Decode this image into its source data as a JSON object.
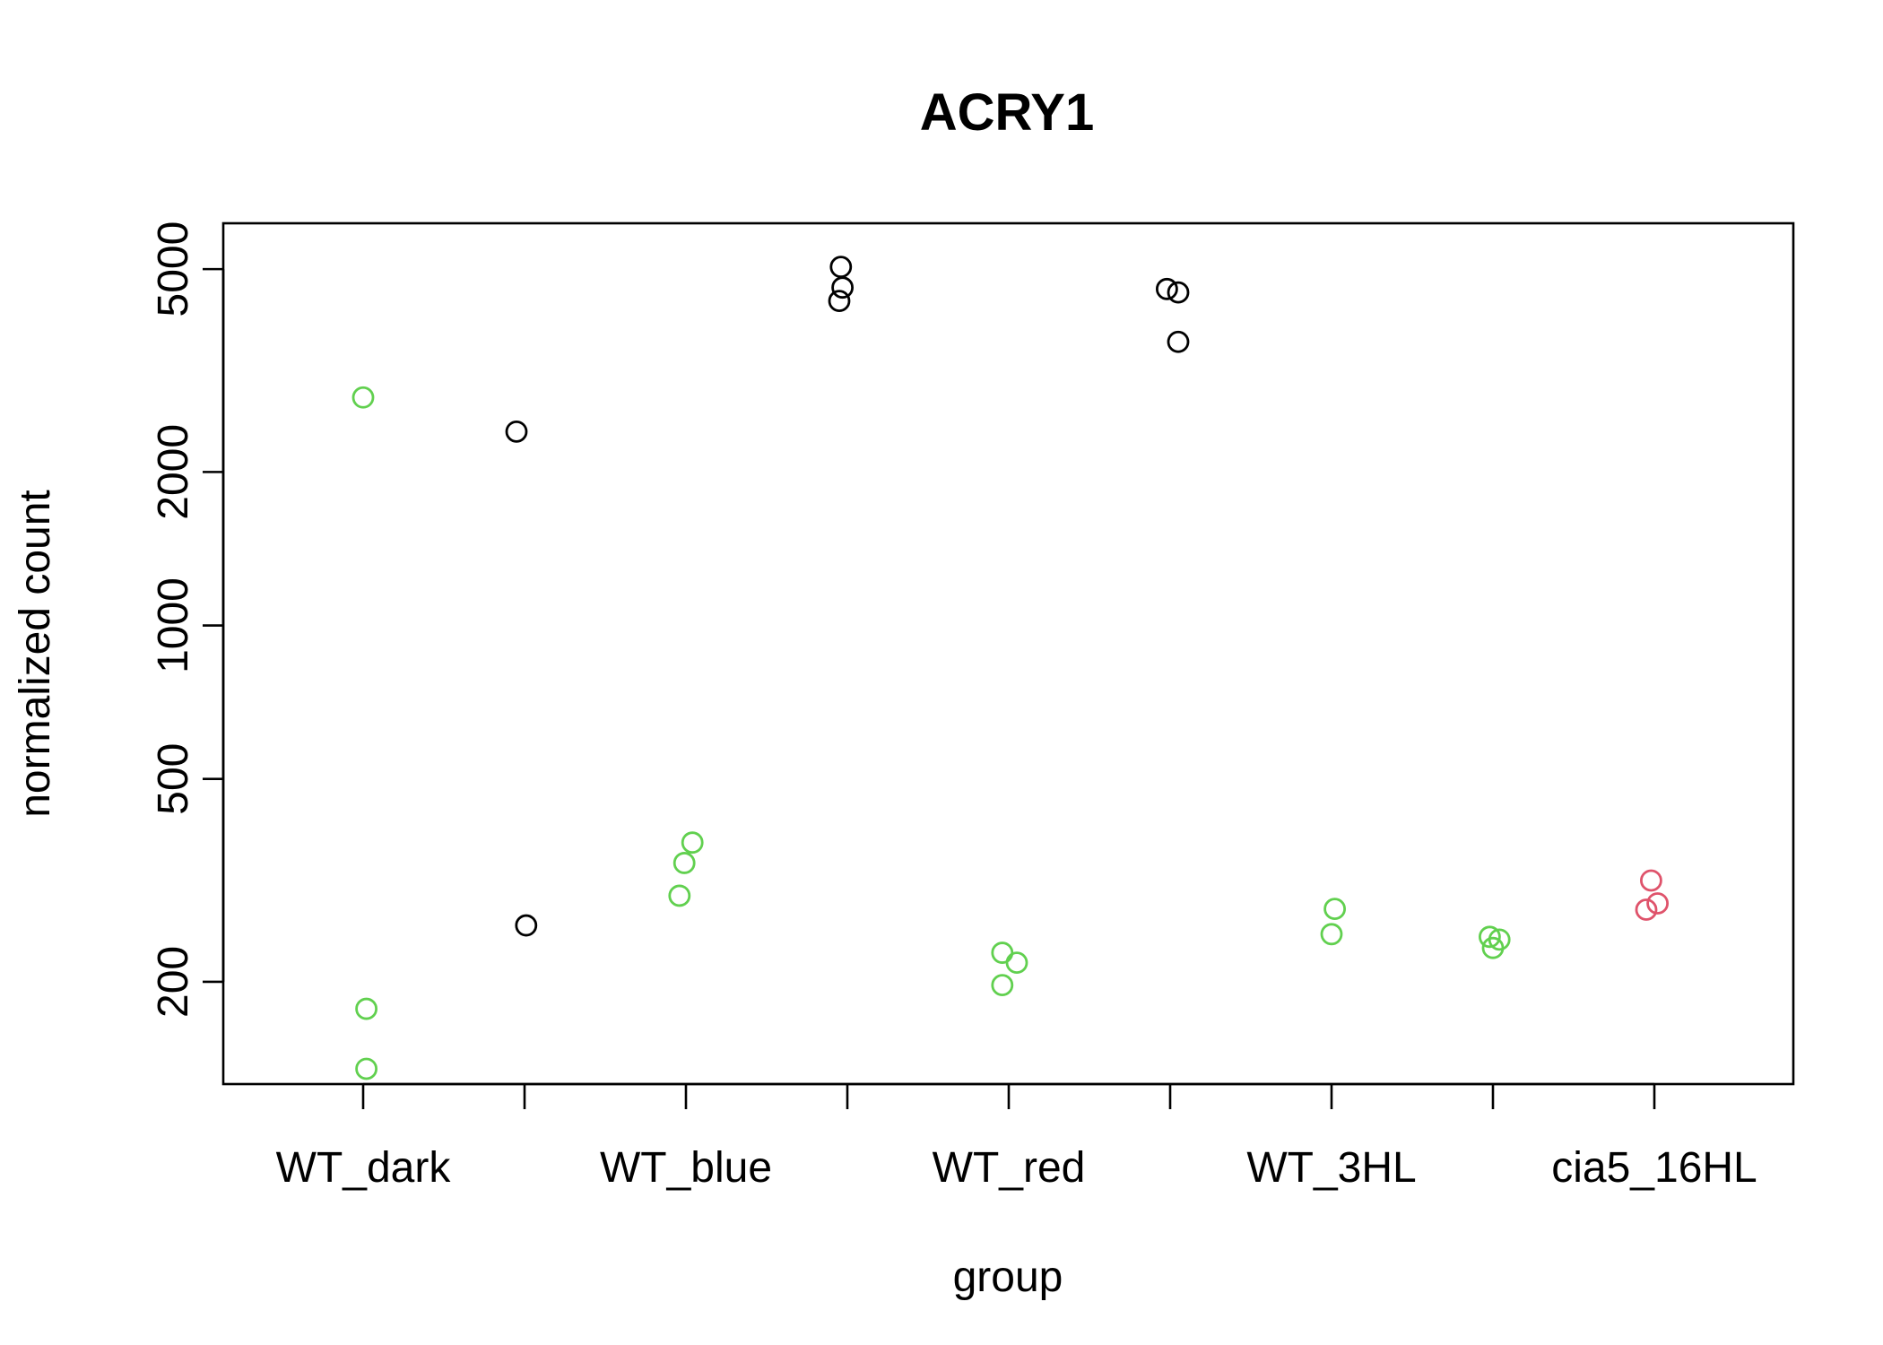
{
  "chart_data": {
    "type": "scatter",
    "title": "ACRY1",
    "xlabel": "group",
    "ylabel": "normalized count",
    "y_scale": "log",
    "ylim": [
      126,
      6150
    ],
    "y_ticks": [
      200,
      500,
      1000,
      2000,
      5000
    ],
    "categories": [
      "WT_dark",
      "",
      "WT_blue",
      "",
      "WT_red",
      "",
      "WT_3HL",
      "",
      "cia5_16HL"
    ],
    "x_tick_labels": [
      "WT_dark",
      "WT_blue",
      "WT_red",
      "WT_3HL",
      "cia5_16HL"
    ],
    "x_tick_count": 9,
    "grid": false,
    "legend": "none",
    "colors": {
      "green": "#61D04F",
      "black": "#000000",
      "red": "#DF536B"
    },
    "points": [
      {
        "x": 1.0,
        "y": 2800,
        "color": "green"
      },
      {
        "x": 1.02,
        "y": 177,
        "color": "green"
      },
      {
        "x": 1.02,
        "y": 135,
        "color": "green"
      },
      {
        "x": 1.95,
        "y": 2400,
        "color": "black"
      },
      {
        "x": 2.01,
        "y": 258,
        "color": "black"
      },
      {
        "x": 2.96,
        "y": 295,
        "color": "green"
      },
      {
        "x": 2.99,
        "y": 342,
        "color": "green"
      },
      {
        "x": 3.04,
        "y": 375,
        "color": "green"
      },
      {
        "x": 3.96,
        "y": 5050,
        "color": "black"
      },
      {
        "x": 3.97,
        "y": 4600,
        "color": "black"
      },
      {
        "x": 3.95,
        "y": 4330,
        "color": "black"
      },
      {
        "x": 4.96,
        "y": 228,
        "color": "green"
      },
      {
        "x": 5.05,
        "y": 218,
        "color": "green"
      },
      {
        "x": 4.96,
        "y": 197,
        "color": "green"
      },
      {
        "x": 5.98,
        "y": 4570,
        "color": "black"
      },
      {
        "x": 6.05,
        "y": 4500,
        "color": "black"
      },
      {
        "x": 6.05,
        "y": 3600,
        "color": "black"
      },
      {
        "x": 7.02,
        "y": 278,
        "color": "green"
      },
      {
        "x": 7.0,
        "y": 248,
        "color": "green"
      },
      {
        "x": 7.98,
        "y": 245,
        "color": "green"
      },
      {
        "x": 8.04,
        "y": 242,
        "color": "green"
      },
      {
        "x": 8.0,
        "y": 233,
        "color": "green"
      },
      {
        "x": 8.98,
        "y": 316,
        "color": "red"
      },
      {
        "x": 9.02,
        "y": 285,
        "color": "red"
      },
      {
        "x": 8.95,
        "y": 277,
        "color": "red"
      }
    ]
  }
}
